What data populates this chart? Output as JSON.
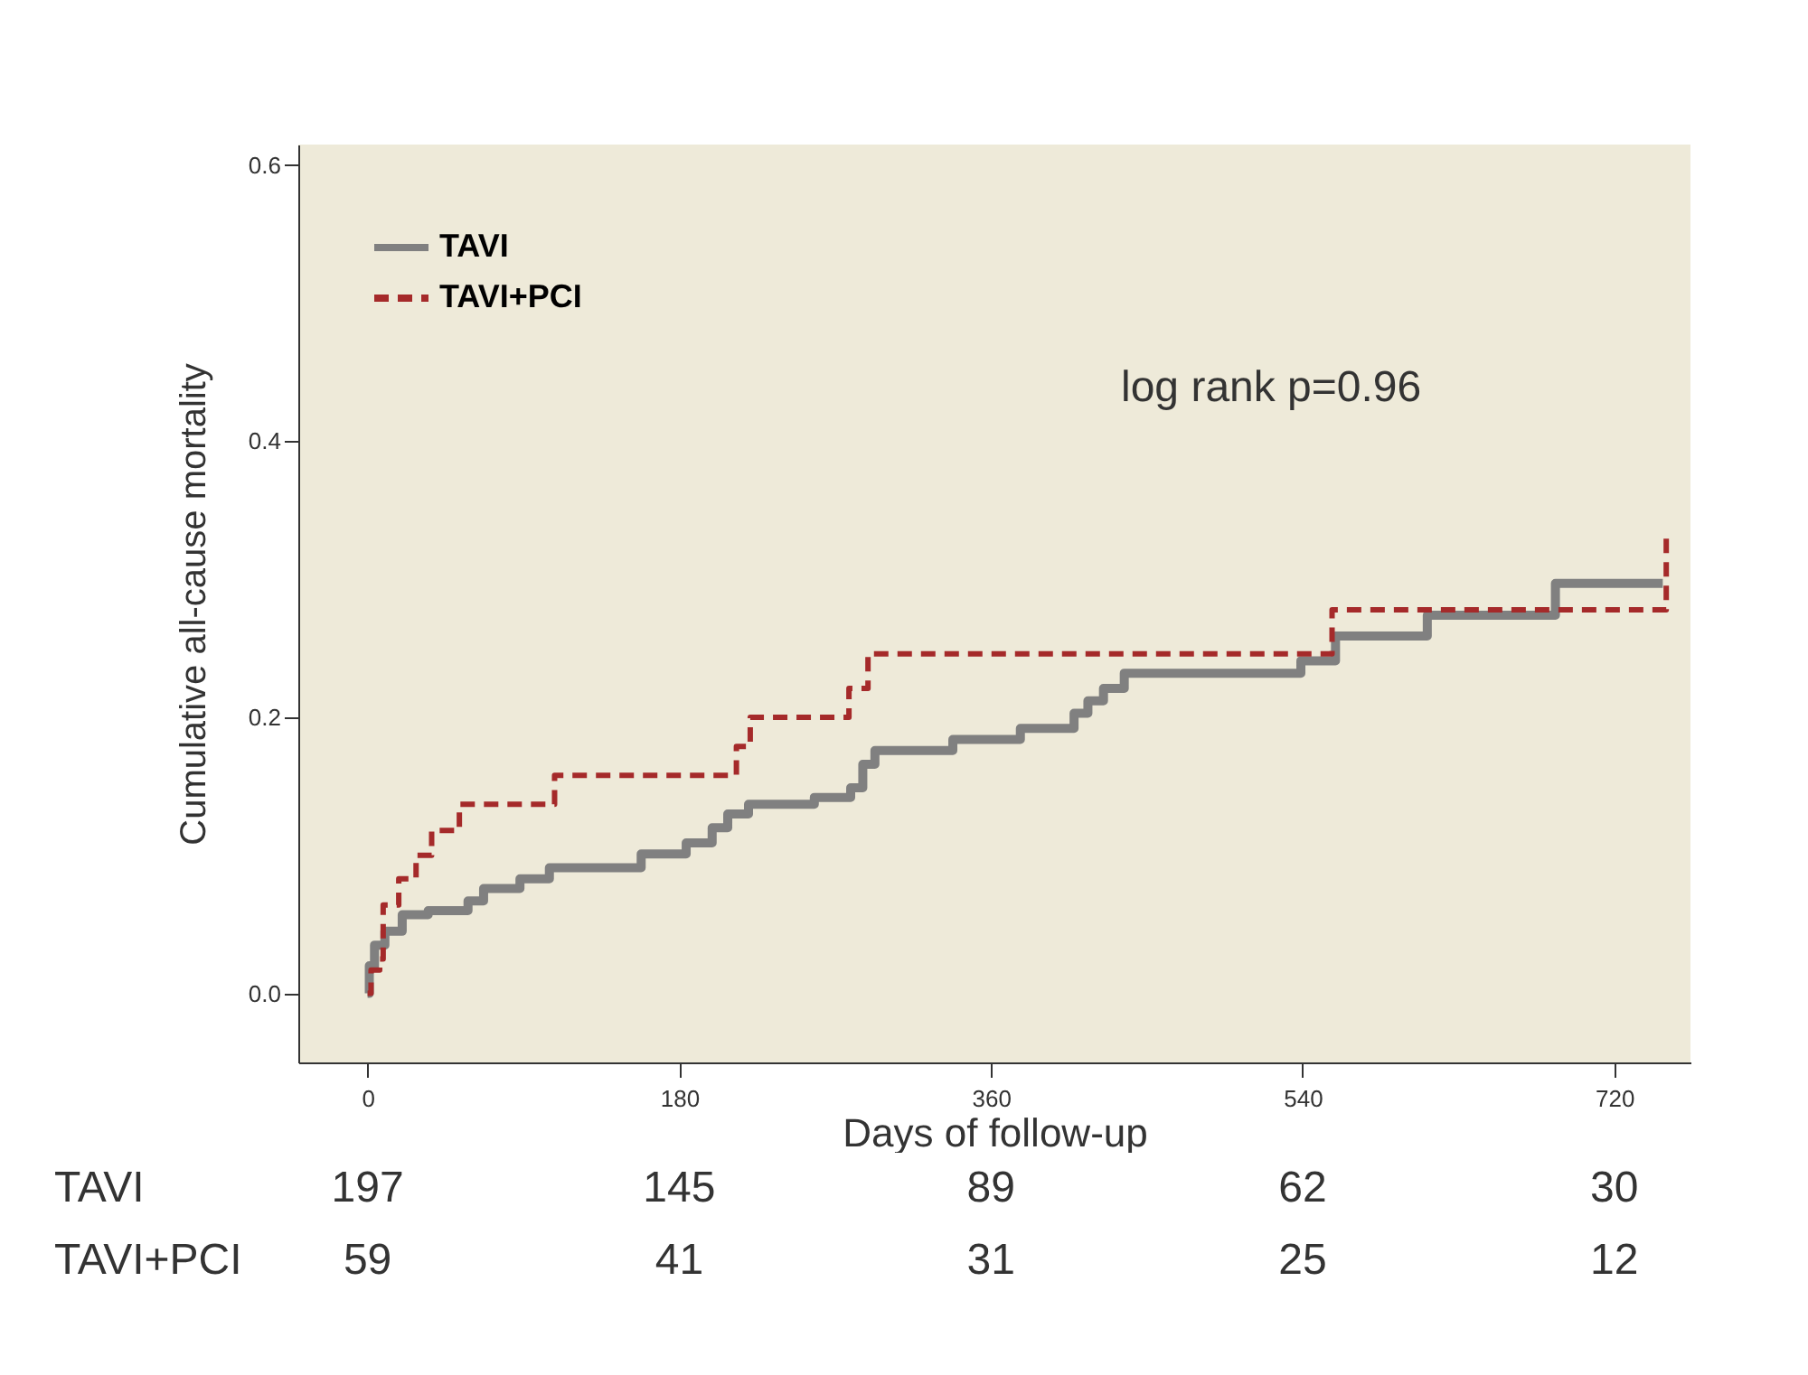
{
  "chart_data": {
    "type": "step",
    "xlabel": "Days of follow-up",
    "ylabel": "Cumulative all-cause mortality",
    "xlim": [
      -40,
      764
    ],
    "ylim": [
      -0.05,
      0.615
    ],
    "xticks": [
      0,
      180,
      360,
      540,
      720
    ],
    "yticks": [
      {
        "value": 0,
        "label": "0.0"
      },
      {
        "value": 0.2,
        "label": "0.2"
      },
      {
        "value": 0.4,
        "label": "0.4"
      },
      {
        "value": 0.6,
        "label": "0.6"
      }
    ],
    "grid": false,
    "legend": "top left",
    "marker": "none",
    "series": [
      {
        "name": "TAVI",
        "color": "#808080",
        "line_style": "solid",
        "x": [
          0,
          1,
          4,
          10,
          20,
          35,
          58,
          67,
          88,
          105,
          158,
          184,
          199,
          208,
          220,
          258,
          279,
          286,
          293,
          338,
          377,
          408,
          416,
          425,
          437,
          539,
          559,
          612,
          686,
          748
        ],
        "values": [
          0,
          0.02,
          0.035,
          0.045,
          0.057,
          0.06,
          0.067,
          0.076,
          0.083,
          0.091,
          0.101,
          0.109,
          0.12,
          0.13,
          0.137,
          0.142,
          0.149,
          0.166,
          0.176,
          0.184,
          0.192,
          0.203,
          0.212,
          0.221,
          0.232,
          0.241,
          0.259,
          0.274,
          0.297,
          0.297
        ]
      },
      {
        "name": "TAVI+PCI",
        "color": "#a52a2a",
        "line_style": "dashed",
        "x": [
          0,
          2,
          7,
          9,
          18,
          28,
          37,
          53,
          108,
          213,
          221,
          278,
          289,
          557,
          750,
          750
        ],
        "values": [
          0,
          0.017,
          0.025,
          0.064,
          0.083,
          0.1,
          0.118,
          0.137,
          0.158,
          0.179,
          0.2,
          0.221,
          0.246,
          0.278,
          0.278,
          0.334
        ]
      }
    ],
    "annotations": [
      "log rank p=0.96",
      "TAVI",
      "197",
      "145",
      "89",
      "62",
      "30",
      "TAVI+PCI",
      "59",
      "41",
      "31",
      "25",
      "12"
    ]
  }
}
